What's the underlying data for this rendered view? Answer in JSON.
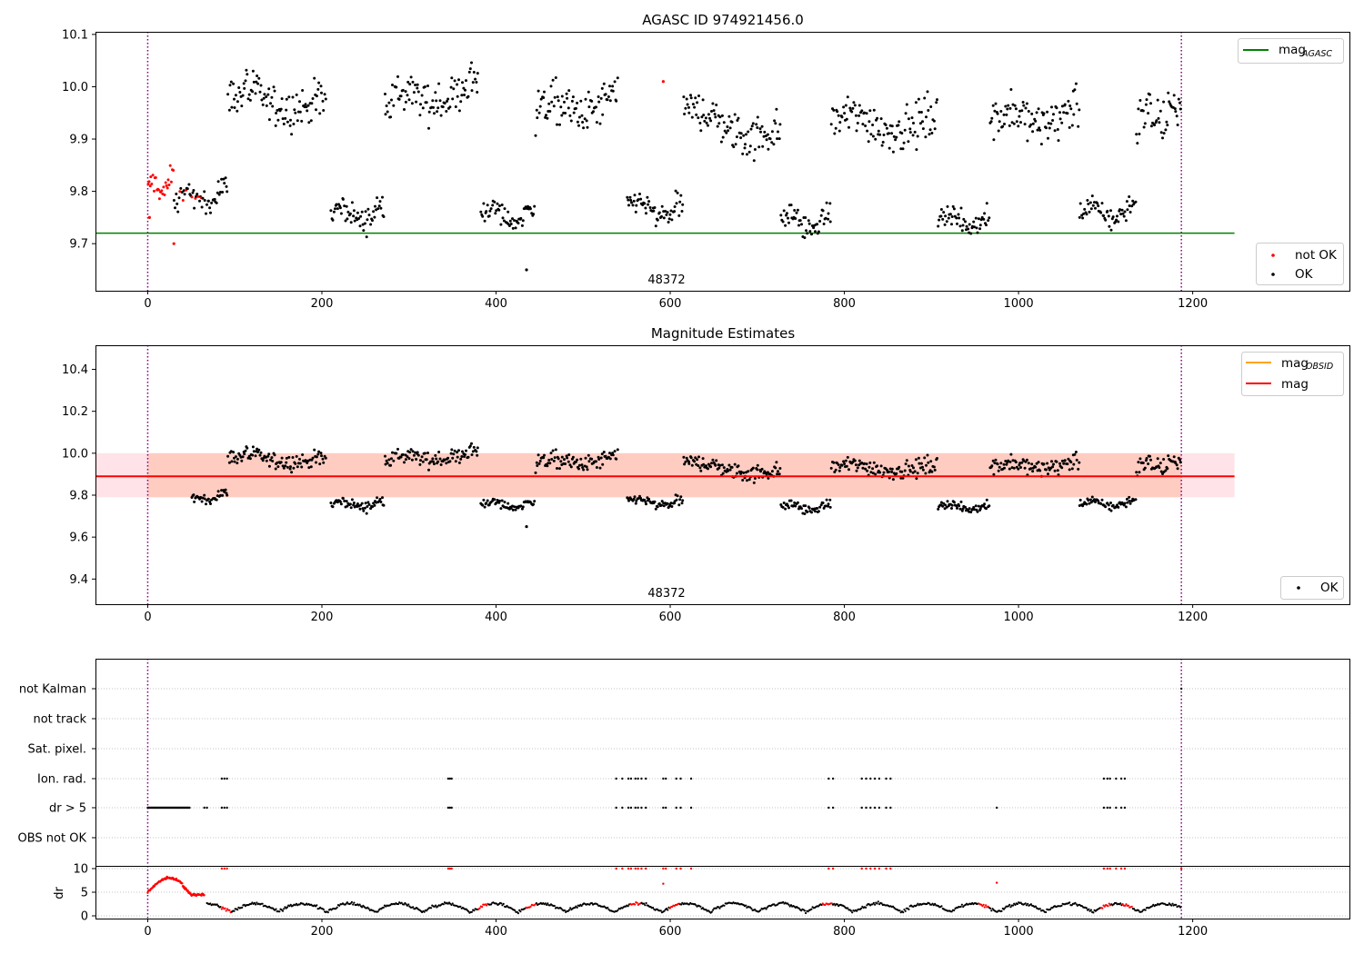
{
  "chart_data": [
    {
      "type": "scatter",
      "title": "AGASC ID 974921456.0",
      "xlim": [
        -60,
        1380
      ],
      "ylim": [
        9.61,
        10.105
      ],
      "xticks": [
        0,
        200,
        400,
        600,
        800,
        1000,
        1200
      ],
      "yticks": [
        9.7,
        9.8,
        9.9,
        10.0,
        10.1
      ],
      "annotation": "48372",
      "vlines": [
        0,
        1187
      ],
      "hlines": [
        {
          "y": 9.72,
          "color": "#008000",
          "x": [
            -60,
            1248
          ]
        }
      ],
      "legend_lines": [
        {
          "label": "mag",
          "sub": "AGASC",
          "color": "#008000"
        }
      ],
      "legend_points": [
        {
          "label": "not OK",
          "color": "#ff0000"
        },
        {
          "label": "OK",
          "color": "#000000"
        }
      ],
      "segments": [
        {
          "x": [
            0,
            30
          ],
          "level": "red_low",
          "start": 9.8,
          "end": 9.82
        },
        {
          "x": [
            30,
            92
          ],
          "level": "low",
          "start": 9.78,
          "end": 9.8
        },
        {
          "x": [
            92,
            205
          ],
          "level": "high",
          "start": 9.98,
          "end": 9.96
        },
        {
          "x": [
            210,
            272
          ],
          "level": "low",
          "start": 9.755,
          "end": 9.76
        },
        {
          "x": [
            272,
            380
          ],
          "level": "high",
          "start": 9.96,
          "end": 10.0
        },
        {
          "x": [
            382,
            445
          ],
          "level": "low",
          "start": 9.755,
          "end": 9.755
        },
        {
          "x": [
            445,
            540
          ],
          "level": "high",
          "start": 9.95,
          "end": 9.97
        },
        {
          "x": [
            550,
            615
          ],
          "level": "low",
          "start": 9.77,
          "end": 9.76
        },
        {
          "x": [
            615,
            727
          ],
          "level": "high",
          "start": 9.95,
          "end": 9.9
        },
        {
          "x": [
            727,
            785
          ],
          "level": "low",
          "start": 9.74,
          "end": 9.745
        },
        {
          "x": [
            785,
            907
          ],
          "level": "high",
          "start": 9.93,
          "end": 9.93
        },
        {
          "x": [
            907,
            967
          ],
          "level": "low",
          "start": 9.745,
          "end": 9.745
        },
        {
          "x": [
            967,
            1070
          ],
          "level": "high",
          "start": 9.93,
          "end": 9.95
        },
        {
          "x": [
            1070,
            1135
          ],
          "level": "low",
          "start": 9.755,
          "end": 9.765
        },
        {
          "x": [
            1135,
            1187
          ],
          "level": "high",
          "start": 9.93,
          "end": 9.96
        }
      ],
      "outliers": [
        {
          "x": 435,
          "y": 9.65,
          "c": "#000000"
        },
        {
          "x": 592,
          "y": 10.01,
          "c": "#ff0000"
        },
        {
          "x": 30,
          "y": 9.7,
          "c": "#ff0000"
        },
        {
          "x": 2,
          "y": 9.75,
          "c": "#ff0000"
        }
      ]
    },
    {
      "type": "scatter",
      "title": "Magnitude Estimates",
      "xlim": [
        -60,
        1380
      ],
      "ylim": [
        9.28,
        10.515
      ],
      "xticks": [
        0,
        200,
        400,
        600,
        800,
        1000,
        1200
      ],
      "yticks": [
        9.4,
        9.6,
        9.8,
        10.0,
        10.2,
        10.4
      ],
      "annotation": "48372",
      "vlines": [
        0,
        1187
      ],
      "mag_line": 9.89,
      "band": [
        9.79,
        10.0
      ],
      "legend_lines": [
        {
          "label": "mag",
          "sub": "OBSID",
          "color": "#ffa500"
        },
        {
          "label": "mag",
          "sub": "",
          "color": "#ff0000"
        }
      ],
      "legend_points": [
        {
          "label": "OK",
          "color": "#000000"
        }
      ]
    },
    {
      "type": "scatter",
      "title": "",
      "xlim": [
        -60,
        1380
      ],
      "xticks": [
        0,
        200,
        400,
        600,
        800,
        1000,
        1200
      ],
      "categories": [
        "not Kalman",
        "not track",
        "Sat. pixel.",
        "Ion. rad.",
        "dr > 5",
        "OBS not OK"
      ],
      "dr_ylabel": "dr",
      "dr_yticks": [
        0,
        5,
        10
      ],
      "vlines": [
        0,
        1187
      ],
      "ion_rad_x": [
        85,
        88,
        91,
        345,
        347,
        349,
        538,
        545,
        552,
        555,
        560,
        563,
        567,
        572,
        592,
        595,
        607,
        612,
        624,
        782,
        787,
        820,
        825,
        830,
        835,
        840,
        848,
        853,
        1098,
        1102,
        1105,
        1112,
        1118,
        1122
      ],
      "dr_gt5_dense": [
        0,
        48
      ],
      "dr_gt5_x": [
        65,
        68,
        85,
        88,
        91,
        345,
        347,
        349,
        538,
        545,
        552,
        555,
        560,
        563,
        567,
        572,
        592,
        595,
        607,
        612,
        624,
        782,
        787,
        820,
        825,
        830,
        835,
        840,
        848,
        853,
        975,
        1098,
        1102,
        1105,
        1112,
        1118,
        1122
      ],
      "not_kalman_x": [
        1187
      ],
      "dr_red_x": [
        85,
        88,
        91,
        345,
        347,
        349,
        538,
        545,
        552,
        555,
        560,
        563,
        567,
        572,
        592,
        595,
        607,
        612,
        624,
        782,
        787,
        820,
        825,
        830,
        835,
        840,
        848,
        853,
        1098,
        1102,
        1105,
        1112,
        1118,
        1122,
        1187
      ]
    }
  ]
}
